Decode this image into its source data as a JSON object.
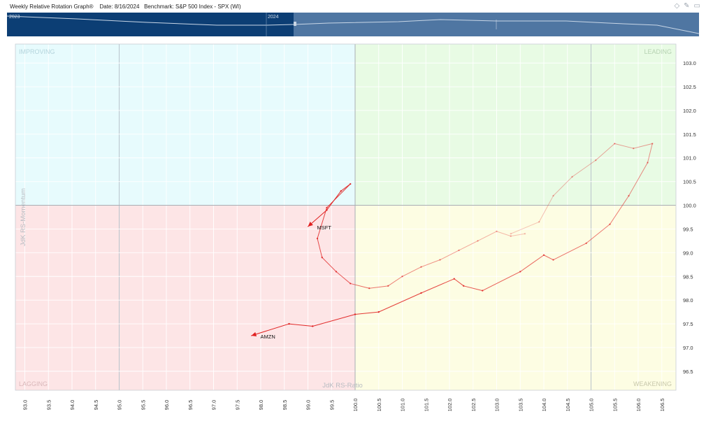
{
  "header": {
    "title": "Weekly Relative Rotation Graph®",
    "date_text": "Date: 8/16/2024",
    "benchmark_text": "Benchmark: S&P 500 Index - SPX (WI)"
  },
  "timeline": {
    "year_labels": [
      "2023",
      "2024"
    ]
  },
  "chart_data": {
    "type": "scatter",
    "xlabel": "JdK RS-Ratio",
    "ylabel": "JdK RS-Momentum",
    "xlim": [
      92.8,
      106.8
    ],
    "ylim": [
      96.1,
      103.4
    ],
    "x_ticks": [
      93.0,
      93.5,
      94.0,
      94.5,
      95.0,
      95.5,
      96.0,
      96.5,
      97.0,
      97.5,
      98.0,
      98.5,
      99.0,
      99.5,
      100.0,
      100.5,
      101.0,
      101.5,
      102.0,
      102.5,
      103.0,
      103.5,
      104.0,
      104.5,
      105.0,
      105.5,
      106.0,
      106.5
    ],
    "y_ticks": [
      96.5,
      97.0,
      97.5,
      98.0,
      98.5,
      99.0,
      99.5,
      100.0,
      100.5,
      101.0,
      101.5,
      102.0,
      102.5,
      103.0
    ],
    "quadrants": {
      "improving": "IMPROVING",
      "leading": "LEADING",
      "lagging": "LAGGING",
      "weakening": "WEAKENING"
    },
    "colors": {
      "improving": "#e7fbfd",
      "leading": "#e8fbe4",
      "lagging": "#fde5e6",
      "weakening": "#fdfde3",
      "tail": "#e02020"
    },
    "series": [
      {
        "name": "MSFT",
        "points": [
          [
            103.6,
            99.4
          ],
          [
            103.3,
            99.35
          ],
          [
            103.0,
            99.45
          ],
          [
            102.6,
            99.25
          ],
          [
            102.2,
            99.05
          ],
          [
            101.8,
            98.85
          ],
          [
            101.4,
            98.7
          ],
          [
            101.0,
            98.5
          ],
          [
            100.7,
            98.3
          ],
          [
            100.3,
            98.25
          ],
          [
            99.9,
            98.35
          ],
          [
            99.6,
            98.6
          ],
          [
            99.3,
            98.9
          ],
          [
            99.2,
            99.3
          ],
          [
            99.4,
            99.95
          ],
          [
            99.9,
            100.45
          ],
          [
            99.7,
            100.3
          ],
          [
            99.4,
            99.9
          ],
          [
            99.0,
            99.55
          ]
        ]
      },
      {
        "name": "AMZN",
        "points": [
          [
            103.3,
            99.4
          ],
          [
            103.9,
            99.65
          ],
          [
            104.2,
            100.2
          ],
          [
            104.6,
            100.6
          ],
          [
            105.1,
            100.95
          ],
          [
            105.5,
            101.3
          ],
          [
            105.9,
            101.2
          ],
          [
            106.3,
            101.3
          ],
          [
            106.2,
            100.9
          ],
          [
            105.8,
            100.2
          ],
          [
            105.4,
            99.6
          ],
          [
            104.9,
            99.2
          ],
          [
            104.2,
            98.85
          ],
          [
            104.0,
            98.95
          ],
          [
            103.5,
            98.6
          ],
          [
            102.7,
            98.2
          ],
          [
            102.3,
            98.3
          ],
          [
            102.1,
            98.45
          ],
          [
            101.4,
            98.15
          ],
          [
            100.5,
            97.75
          ],
          [
            100.0,
            97.7
          ],
          [
            99.1,
            97.45
          ],
          [
            98.6,
            97.5
          ],
          [
            97.8,
            97.25
          ]
        ]
      }
    ]
  }
}
